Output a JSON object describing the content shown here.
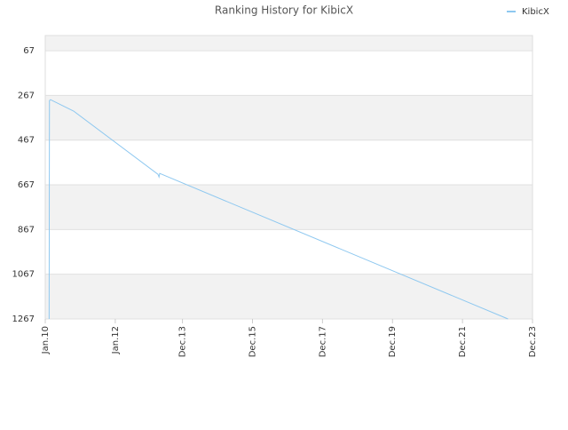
{
  "chart_data": {
    "type": "line",
    "title": "Ranking History for KibicX",
    "x": [
      2010.11,
      2010.12,
      2010.15,
      2010.81,
      2013.22,
      2013.25,
      2013.27,
      2023.22
    ],
    "series": [
      {
        "name": "KibicX",
        "color": "#8ec8f0",
        "values": [
          1267,
          290,
          286,
          337,
          620,
          632,
          616,
          1267
        ]
      }
    ],
    "xlim": [
      2010.0,
      2023.92
    ],
    "xticks": [
      {
        "value": 2010.0,
        "label": "Jan.10"
      },
      {
        "value": 2012.0,
        "label": "Jan.12"
      },
      {
        "value": 2013.92,
        "label": "Dec.13"
      },
      {
        "value": 2015.92,
        "label": "Dec.15"
      },
      {
        "value": 2017.92,
        "label": "Dec.17"
      },
      {
        "value": 2019.92,
        "label": "Dec.19"
      },
      {
        "value": 2021.92,
        "label": "Dec.21"
      },
      {
        "value": 2023.92,
        "label": "Dec.23"
      }
    ],
    "ylim": [
      1267,
      -1
    ],
    "yticks": [
      67,
      267,
      467,
      667,
      867,
      1067,
      1267
    ],
    "grid": true,
    "legend": "top-right"
  }
}
